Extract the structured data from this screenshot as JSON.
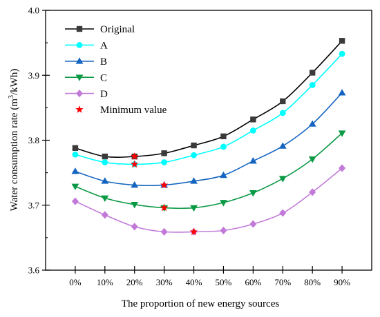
{
  "chart_data": {
    "type": "line",
    "xlabel": "The proportion of new energy sources",
    "ylabel_main": "Water consumption rate (m",
    "ylabel_sup": "3",
    "ylabel_tail": "/kWh)",
    "categories": [
      "0%",
      "10%",
      "20%",
      "30%",
      "40%",
      "50%",
      "60%",
      "70%",
      "80%",
      "90%"
    ],
    "ylim": [
      3.6,
      4.0
    ],
    "yticks": [
      "3.6",
      "3.7",
      "3.8",
      "3.9",
      "4.0"
    ],
    "series": [
      {
        "name": "Original",
        "color": "#000000",
        "marker": "square",
        "values": [
          3.788,
          3.775,
          3.775,
          3.78,
          3.792,
          3.806,
          3.832,
          3.86,
          3.904,
          3.953
        ]
      },
      {
        "name": "A",
        "color": "#00ffff",
        "marker": "circle",
        "values": [
          3.778,
          3.766,
          3.763,
          3.766,
          3.777,
          3.79,
          3.815,
          3.842,
          3.885,
          3.933
        ]
      },
      {
        "name": "B",
        "color": "#1565c0",
        "marker": "triangle-up",
        "values": [
          3.752,
          3.737,
          3.731,
          3.731,
          3.737,
          3.746,
          3.768,
          3.791,
          3.825,
          3.873
        ]
      },
      {
        "name": "C",
        "color": "#0a9a45",
        "marker": "triangle-down",
        "values": [
          3.729,
          3.711,
          3.701,
          3.696,
          3.696,
          3.704,
          3.719,
          3.741,
          3.771,
          3.811
        ]
      },
      {
        "name": "D",
        "color": "#c27ad9",
        "marker": "diamond",
        "values": [
          3.706,
          3.685,
          3.667,
          3.659,
          3.659,
          3.661,
          3.671,
          3.688,
          3.72,
          3.757
        ]
      }
    ],
    "minimum": {
      "name": "Minimum value",
      "color": "#ff0000",
      "marker": "star",
      "points": [
        {
          "x": "20%",
          "y": 3.775
        },
        {
          "x": "20%",
          "y": 3.763
        },
        {
          "x": "30%",
          "y": 3.731
        },
        {
          "x": "30%",
          "y": 3.696
        },
        {
          "x": "40%",
          "y": 3.659
        }
      ]
    },
    "legend_position": "top-left",
    "grid": false
  }
}
